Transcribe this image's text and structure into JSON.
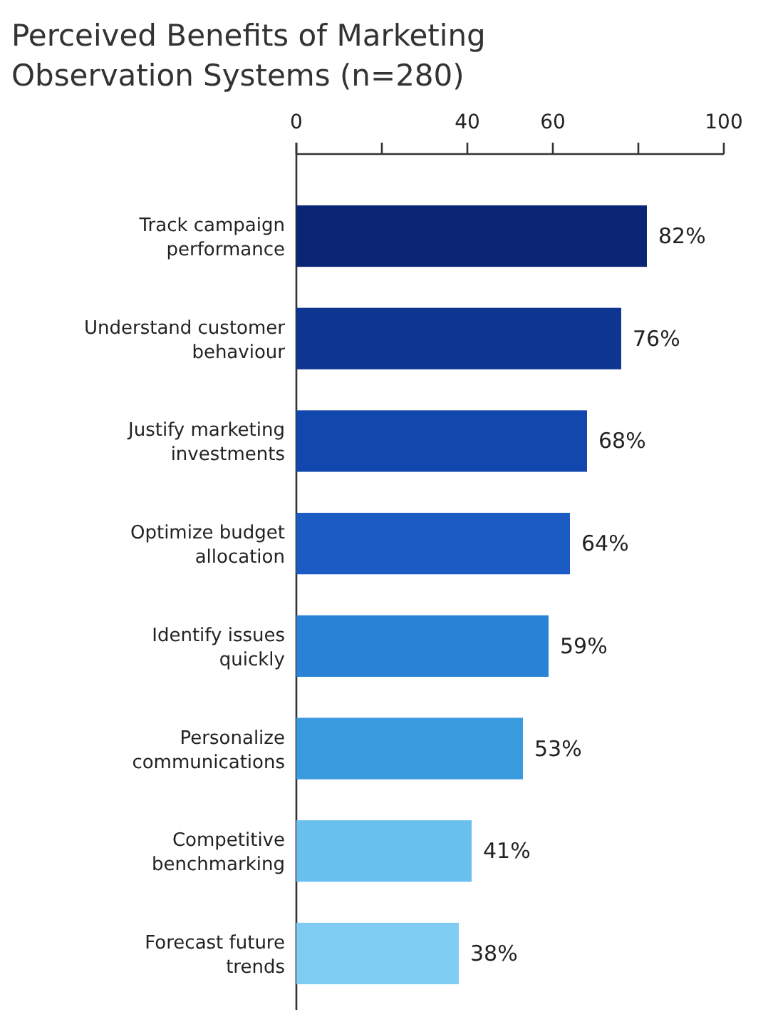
{
  "chart_data": {
    "type": "bar",
    "orientation": "horizontal",
    "title": "Perceived Benefits of Marketing Observation Systems (n=280)",
    "categories": [
      "Track campaign performance",
      "Understand customer behaviour",
      "Justify marketing investments",
      "Optimize budget allocation",
      "Identify issues quickly",
      "Personalize communications",
      "Competitive benchmarking",
      "Forecast future trends"
    ],
    "values": [
      82,
      76,
      68,
      64,
      59,
      53,
      41,
      38
    ],
    "colors": [
      "#0b2575",
      "#0e3590",
      "#1248ad",
      "#1a5cc4",
      "#2a82d6",
      "#3a9ade",
      "#68c0ee",
      "#80cdf3"
    ],
    "value_labels": [
      "82%",
      "76%",
      "68%",
      "64%",
      "59%",
      "53%",
      "41%",
      "38%"
    ],
    "xlim": [
      0,
      100
    ],
    "xticks": [
      0,
      {
        "value": 20,
        "label": null
      },
      40,
      60,
      {
        "value": 80,
        "label": null
      },
      100
    ]
  }
}
